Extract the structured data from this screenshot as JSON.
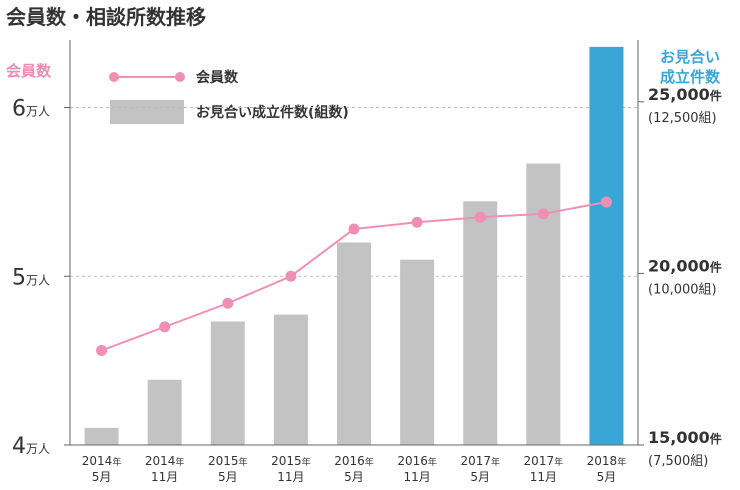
{
  "title": "会員数・相談所数推移",
  "colors": {
    "members_line": "#f08fb4",
    "bar_default": "#c3c3c3",
    "bar_highlight": "#3aa6d8",
    "grid": "#bbbbbb",
    "title_text": "#333333"
  },
  "left_axis": {
    "label": "会員数",
    "ticks": [
      {
        "value": 4,
        "num": "4",
        "unit": "万人"
      },
      {
        "value": 5,
        "num": "5",
        "unit": "万人"
      },
      {
        "value": 6,
        "num": "6",
        "unit": "万人"
      }
    ]
  },
  "right_axis": {
    "label_line1": "お見合い",
    "label_line2": "成立件数",
    "ticks": [
      {
        "value": 15000,
        "num": "15,000",
        "unit": "件",
        "sub": "(7,500組)"
      },
      {
        "value": 20000,
        "num": "20,000",
        "unit": "件",
        "sub": "(10,000組)"
      },
      {
        "value": 25000,
        "num": "25,000",
        "unit": "件",
        "sub": "(12,500組)"
      }
    ]
  },
  "legend": {
    "line_label": "会員数",
    "bar_label": "お見合い成立件数(組数)"
  },
  "chart_data": {
    "type": "bar",
    "x_labels": [
      {
        "year": "2014",
        "unit": "年",
        "month": "5月"
      },
      {
        "year": "2014",
        "unit": "年",
        "month": "11月"
      },
      {
        "year": "2015",
        "unit": "年",
        "month": "5月"
      },
      {
        "year": "2015",
        "unit": "年",
        "month": "11月"
      },
      {
        "year": "2016",
        "unit": "年",
        "month": "5月"
      },
      {
        "year": "2016",
        "unit": "年",
        "month": "11月"
      },
      {
        "year": "2017",
        "unit": "年",
        "month": "5月"
      },
      {
        "year": "2017",
        "unit": "年",
        "month": "11月"
      },
      {
        "year": "2018",
        "unit": "年",
        "month": "5月"
      }
    ],
    "series": [
      {
        "name": "お見合い成立件数(組数)",
        "type": "bar",
        "axis": "right",
        "values": [
          15500,
          16900,
          18600,
          18800,
          20900,
          20400,
          22100,
          23200,
          26600
        ]
      },
      {
        "name": "会員数",
        "type": "line",
        "axis": "left",
        "values": [
          4.56,
          4.7,
          4.84,
          5.0,
          5.28,
          5.32,
          5.35,
          5.37,
          5.44
        ]
      }
    ],
    "highlight_index": 8,
    "left_ylim": [
      4,
      6.4
    ],
    "right_ylim": [
      15000,
      26800
    ],
    "grid": "dashed horizontal at left-axis 5 and 6",
    "legend_position": "top-left"
  }
}
